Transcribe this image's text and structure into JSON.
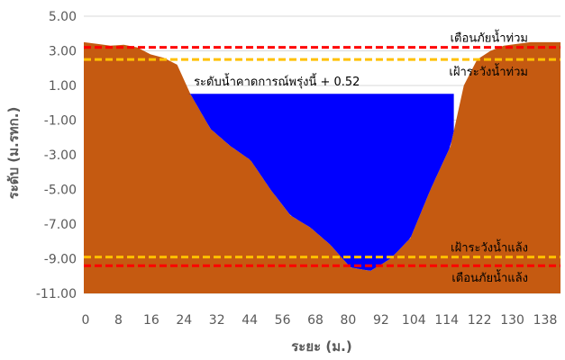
{
  "chart_data": {
    "type": "area",
    "xlabel": "ระยะ (ม.)",
    "ylabel": "ระดับ (ม.รทก.)",
    "x_ticks": [
      "0",
      "8",
      "16",
      "24",
      "32",
      "44",
      "56",
      "68",
      "80",
      "92",
      "104",
      "114",
      "122",
      "130",
      "138"
    ],
    "y_ticks": [
      "5.00",
      "3.00",
      "1.00",
      "-1.00",
      "-3.00",
      "-5.00",
      "-7.00",
      "-9.00",
      "-11.00"
    ],
    "ylim": [
      -11,
      5
    ],
    "grid": true,
    "ground_profile": {
      "color": "#c55a11",
      "points": [
        [
          0,
          3.5
        ],
        [
          4,
          3.4
        ],
        [
          8,
          3.3
        ],
        [
          12,
          3.35
        ],
        [
          16,
          3.2
        ],
        [
          20,
          2.8
        ],
        [
          24,
          2.6
        ],
        [
          28,
          2.2
        ],
        [
          32,
          0.5
        ],
        [
          38,
          -1.5
        ],
        [
          44,
          -2.5
        ],
        [
          50,
          -3.3
        ],
        [
          56,
          -5.0
        ],
        [
          62,
          -6.5
        ],
        [
          68,
          -7.2
        ],
        [
          74,
          -8.2
        ],
        [
          80,
          -9.5
        ],
        [
          86,
          -9.7
        ],
        [
          92,
          -9.0
        ],
        [
          98,
          -7.8
        ],
        [
          104,
          -5.0
        ],
        [
          110,
          -2.5
        ],
        [
          114,
          1.0
        ],
        [
          118,
          2.5
        ],
        [
          122,
          3.0
        ],
        [
          126,
          3.3
        ],
        [
          130,
          3.4
        ],
        [
          134,
          3.5
        ],
        [
          138,
          3.5
        ],
        [
          143,
          3.5
        ]
      ]
    },
    "water": {
      "color": "#0000ff",
      "level": 0.52,
      "x_range": [
        30,
        111
      ]
    },
    "reference_lines": [
      {
        "label": "เตือนภัยน้ำท่วม",
        "value": 3.2,
        "color": "#ff0000"
      },
      {
        "label": "เฝ้าระวังน้ำท่วม",
        "value": 2.5,
        "color": "#ffc000"
      },
      {
        "label": "เฝ้าระวังน้ำแล้ง",
        "value": -8.9,
        "color": "#ffc000"
      },
      {
        "label": "เตือนภัยน้ำแล้ง",
        "value": -9.4,
        "color": "#ff0000"
      }
    ],
    "forecast_label": "ระดับน้ำคาดการณ์พรุ่งนี้ + 0.52"
  }
}
